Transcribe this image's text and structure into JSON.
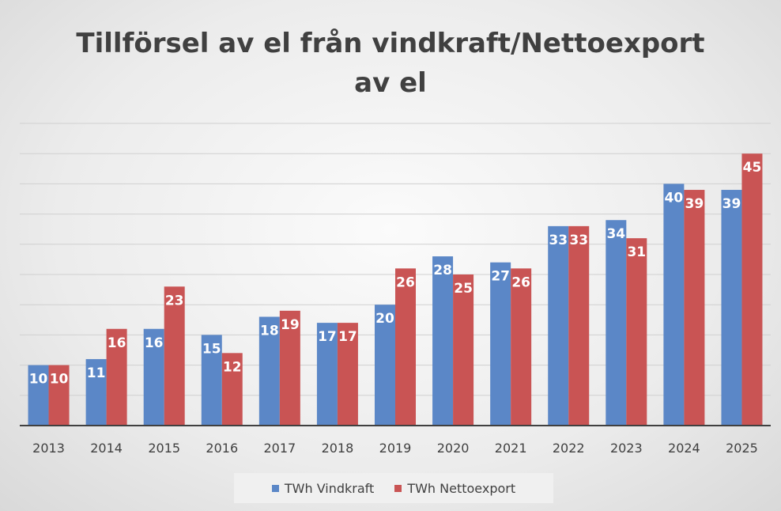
{
  "chart_data": {
    "type": "bar",
    "title": [
      "Tillförsel av el från vindkraft/Nettoexport",
      "av el"
    ],
    "categories": [
      "2013",
      "2014",
      "2015",
      "2016",
      "2017",
      "2018",
      "2019",
      "2020",
      "2021",
      "2022",
      "2023",
      "2024",
      "2025"
    ],
    "series": [
      {
        "name": "TWh Vindkraft",
        "color": "#5b87c7",
        "values": [
          10,
          11,
          16,
          15,
          18,
          17,
          20,
          28,
          27,
          33,
          34,
          40,
          39
        ]
      },
      {
        "name": "TWh Nettoexport",
        "color": "#c95454",
        "values": [
          10,
          16,
          23,
          12,
          19,
          17,
          26,
          25,
          26,
          33,
          31,
          39,
          45
        ]
      }
    ],
    "ylim": [
      0,
      50
    ],
    "grid": true,
    "legend": "bottom",
    "data_labels": true
  }
}
